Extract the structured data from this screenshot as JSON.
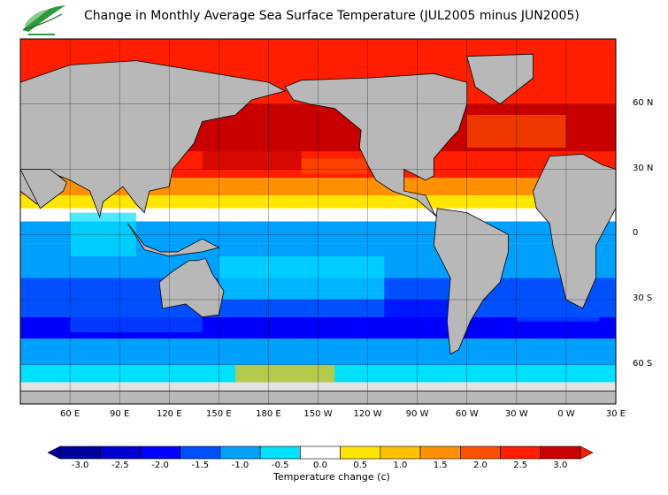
{
  "title": "Change in Monthly Average Sea Surface Temperature (JUL2005 minus JUN2005)",
  "logo": {
    "icon": "leaf-logo-icon",
    "colors": {
      "green": "#2e9a3e",
      "light": "#8cc88f"
    }
  },
  "map": {
    "projection": "equirectangular",
    "lon_range_deg": [
      30,
      390
    ],
    "lat_range_deg": [
      -78,
      90
    ],
    "lat_labels": [
      {
        "text": "60 N",
        "lat": 60
      },
      {
        "text": "30 N",
        "lat": 30
      },
      {
        "text": "0",
        "lat": 0
      },
      {
        "text": "30 S",
        "lat": -30
      },
      {
        "text": "60 S",
        "lat": -60
      }
    ],
    "lon_labels": [
      {
        "text": "60 E",
        "lon": 60
      },
      {
        "text": "90 E",
        "lon": 90
      },
      {
        "text": "120 E",
        "lon": 120
      },
      {
        "text": "150 E",
        "lon": 150
      },
      {
        "text": "180 E",
        "lon": 180
      },
      {
        "text": "150 W",
        "lon": 210
      },
      {
        "text": "120 W",
        "lon": 240
      },
      {
        "text": "90 W",
        "lon": 270
      },
      {
        "text": "60 W",
        "lon": 300
      },
      {
        "text": "30 W",
        "lon": 330
      },
      {
        "text": "0 W",
        "lon": 360
      },
      {
        "text": "30 E",
        "lon": 390
      }
    ],
    "colors": {
      "land": "#b8b8b8",
      "ice": "#e2e2e2",
      "border": "#000000",
      "grid": "#ffffff"
    }
  },
  "colorbar": {
    "label": "Temperature change  (c)",
    "ticks": [
      "-3.0",
      "-2.5",
      "-2.0",
      "-1.5",
      "-1.0",
      "-0.5",
      "0.0",
      "0.5",
      "1.0",
      "1.5",
      "2.0",
      "2.5",
      "3.0"
    ],
    "bins": [
      "#00009a",
      "#0000d0",
      "#0000ff",
      "#0050ff",
      "#00a0ff",
      "#00e0ff",
      "#ffffff",
      "#ffe600",
      "#ffc000",
      "#ff9000",
      "#ff5000",
      "#ff1e00",
      "#c80000"
    ],
    "arrow_low": "#00009a",
    "arrow_high": "#ff1e00"
  }
}
